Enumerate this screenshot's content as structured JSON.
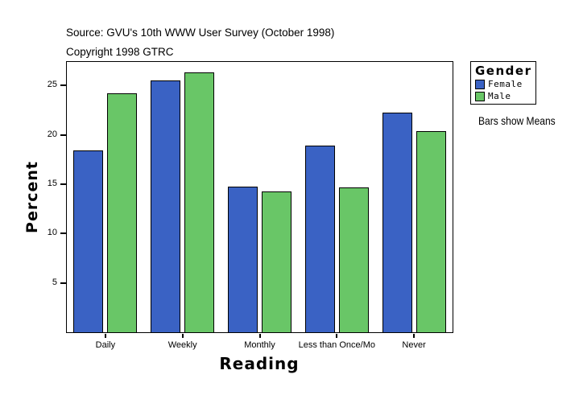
{
  "header": {
    "source_line": "Source: GVU's 10th WWW User Survey (October 1998)",
    "copyright_line": "Copyright 1998 GTRC"
  },
  "chart_data": {
    "type": "bar",
    "title": "GVU's 10th WWW User Survey (October 1998)",
    "xlabel": "Reading",
    "ylabel": "Percent",
    "categories": [
      "Daily",
      "Weekly",
      "Monthly",
      "Less than Once/Mo",
      "Never"
    ],
    "series": [
      {
        "name": "Female",
        "color": "#3A62C4",
        "values": [
          18.4,
          25.5,
          14.8,
          18.9,
          22.3
        ]
      },
      {
        "name": "Male",
        "color": "#69C667",
        "values": [
          24.2,
          26.3,
          14.3,
          14.7,
          20.4
        ]
      }
    ],
    "yticks": [
      5,
      10,
      15,
      20,
      25
    ],
    "ylim": [
      0,
      27.4
    ],
    "grid": false,
    "legend_position": "right",
    "bar_outline_color": "#000000"
  },
  "legend": {
    "title": "Gender",
    "items": [
      {
        "label": "Female",
        "color": "#3A62C4"
      },
      {
        "label": "Male",
        "color": "#69C667"
      }
    ],
    "note": "Bars show Means"
  }
}
